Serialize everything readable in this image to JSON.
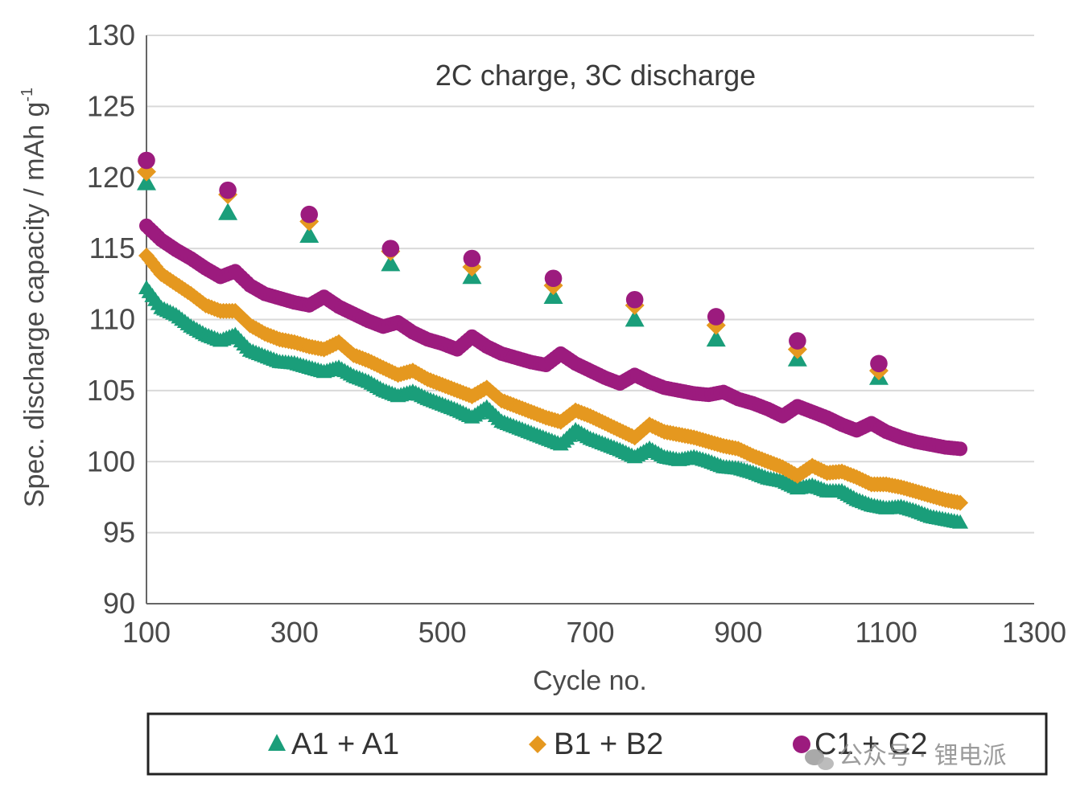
{
  "chart_data": {
    "type": "scatter",
    "title": "2C charge, 3C discharge",
    "xlabel": "Cycle no.",
    "ylabel": "Spec. discharge capacity / mAh g",
    "ylabel_superscript": "-1",
    "xlim": [
      100,
      1300
    ],
    "ylim": [
      90,
      130
    ],
    "xticks": [
      100,
      300,
      500,
      700,
      900,
      1100,
      1300
    ],
    "yticks": [
      90,
      95,
      100,
      105,
      110,
      115,
      120,
      125,
      130
    ],
    "xtick_labels": [
      "100",
      "300",
      "500",
      "700",
      "900",
      "1100",
      "1300"
    ],
    "ytick_labels": [
      "90",
      "95",
      "100",
      "105",
      "110",
      "115",
      "120",
      "125",
      "130"
    ],
    "grid": "horizontal",
    "legend_position": "bottom",
    "series": [
      {
        "name": "A1 + A1",
        "marker": "triangle",
        "color": "#1a9e7a",
        "x": [
          100,
          120,
          140,
          160,
          180,
          200,
          220,
          240,
          260,
          280,
          300,
          320,
          340,
          360,
          380,
          400,
          420,
          440,
          460,
          480,
          500,
          520,
          540,
          560,
          580,
          600,
          620,
          640,
          660,
          680,
          700,
          720,
          740,
          760,
          780,
          800,
          820,
          840,
          860,
          880,
          900,
          920,
          940,
          960,
          980,
          1000,
          1020,
          1040,
          1060,
          1080,
          1100,
          1120,
          1140,
          1160,
          1180,
          1200
        ],
        "y": [
          112.2,
          110.8,
          110.3,
          109.5,
          108.9,
          108.5,
          108.9,
          107.8,
          107.4,
          107.0,
          106.9,
          106.6,
          106.3,
          106.6,
          106.0,
          105.6,
          105.0,
          104.6,
          104.9,
          104.4,
          104.0,
          103.6,
          103.1,
          103.8,
          102.8,
          102.4,
          102.0,
          101.6,
          101.2,
          102.2,
          101.6,
          101.2,
          100.8,
          100.3,
          100.9,
          100.3,
          100.1,
          100.3,
          100.0,
          99.6,
          99.5,
          99.2,
          98.8,
          98.6,
          98.1,
          98.3,
          97.9,
          97.9,
          97.3,
          96.9,
          96.7,
          96.8,
          96.5,
          96.1,
          95.9,
          95.7
        ],
        "checkpoints": {
          "x": [
            100,
            210,
            320,
            430,
            540,
            650,
            760,
            870,
            980,
            1090
          ],
          "y": [
            119.6,
            117.5,
            115.9,
            113.9,
            113.0,
            111.6,
            110.0,
            108.6,
            107.2,
            105.9
          ]
        }
      },
      {
        "name": "B1 + B2",
        "marker": "diamond",
        "color": "#e5981f",
        "x": [
          100,
          120,
          140,
          160,
          180,
          200,
          220,
          240,
          260,
          280,
          300,
          320,
          340,
          360,
          380,
          400,
          420,
          440,
          460,
          480,
          500,
          520,
          540,
          560,
          580,
          600,
          620,
          640,
          660,
          680,
          700,
          720,
          740,
          760,
          780,
          800,
          820,
          840,
          860,
          880,
          900,
          920,
          940,
          960,
          980,
          1000,
          1020,
          1040,
          1060,
          1080,
          1100,
          1120,
          1140,
          1160,
          1180,
          1200
        ],
        "y": [
          114.5,
          113.2,
          112.5,
          111.8,
          111.0,
          110.6,
          110.6,
          109.6,
          109.0,
          108.6,
          108.4,
          108.1,
          107.9,
          108.4,
          107.5,
          107.1,
          106.6,
          106.1,
          106.4,
          105.8,
          105.4,
          105.0,
          104.6,
          105.2,
          104.3,
          103.9,
          103.5,
          103.1,
          102.8,
          103.6,
          103.2,
          102.7,
          102.2,
          101.7,
          102.6,
          102.1,
          101.9,
          101.7,
          101.4,
          101.1,
          100.9,
          100.4,
          100.0,
          99.6,
          99.0,
          99.7,
          99.2,
          99.3,
          98.9,
          98.4,
          98.4,
          98.2,
          97.9,
          97.6,
          97.3,
          97.1
        ],
        "checkpoints": {
          "x": [
            100,
            210,
            320,
            430,
            540,
            650,
            760,
            870,
            980,
            1090
          ],
          "y": [
            120.4,
            118.8,
            116.9,
            114.8,
            113.7,
            112.4,
            111.0,
            109.6,
            107.9,
            106.4
          ]
        }
      },
      {
        "name": "C1 + C2",
        "marker": "circle",
        "color": "#9c1b7e",
        "x": [
          100,
          120,
          140,
          160,
          180,
          200,
          220,
          240,
          260,
          280,
          300,
          320,
          340,
          360,
          380,
          400,
          420,
          440,
          460,
          480,
          500,
          520,
          540,
          560,
          580,
          600,
          620,
          640,
          660,
          680,
          700,
          720,
          740,
          760,
          780,
          800,
          820,
          840,
          860,
          880,
          900,
          920,
          940,
          960,
          980,
          1000,
          1020,
          1040,
          1060,
          1080,
          1100,
          1120,
          1140,
          1160,
          1180,
          1200
        ],
        "y": [
          116.6,
          115.6,
          114.9,
          114.3,
          113.6,
          113.0,
          113.4,
          112.4,
          111.8,
          111.5,
          111.2,
          111.0,
          111.6,
          110.9,
          110.4,
          109.9,
          109.5,
          109.8,
          109.1,
          108.6,
          108.3,
          107.9,
          108.8,
          108.1,
          107.6,
          107.3,
          107.0,
          106.8,
          107.6,
          106.9,
          106.4,
          105.9,
          105.5,
          106.1,
          105.6,
          105.2,
          105.0,
          104.8,
          104.7,
          104.9,
          104.4,
          104.1,
          103.7,
          103.2,
          103.9,
          103.5,
          103.1,
          102.6,
          102.2,
          102.7,
          102.1,
          101.7,
          101.4,
          101.2,
          101.0,
          100.9
        ],
        "checkpoints": {
          "x": [
            100,
            210,
            320,
            430,
            540,
            650,
            760,
            870,
            980,
            1090
          ],
          "y": [
            121.2,
            119.1,
            117.4,
            115.0,
            114.3,
            112.9,
            111.4,
            110.2,
            108.5,
            106.9
          ]
        }
      }
    ]
  },
  "watermark": {
    "icon": "wechat-icon",
    "text": "公众号 · 锂电派"
  }
}
